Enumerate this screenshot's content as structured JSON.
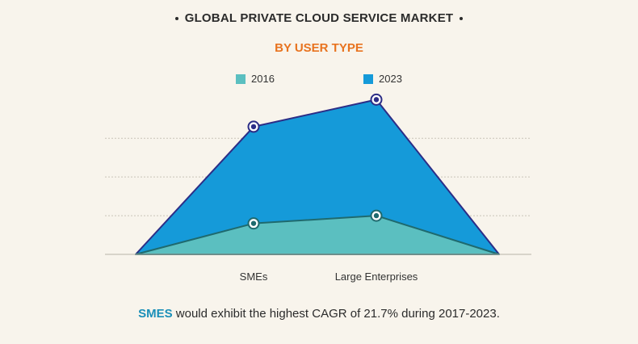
{
  "header": {
    "title": "GLOBAL PRIVATE CLOUD SERVICE MARKET",
    "subtitle": "BY USER TYPE"
  },
  "footer": {
    "highlight": "SMES",
    "text": " would exhibit the highest CAGR of 21.7% during 2017-2023."
  },
  "colors": {
    "series_2016": "#5bbfc0",
    "series_2023": "#159ad9",
    "outline_2023": "#2c2d86",
    "outline_2016": "#1f6a6e",
    "subtitle": "#e8731f",
    "highlight": "#1a8fb8"
  },
  "chart_data": {
    "type": "area",
    "categories": [
      "SMEs",
      "Large Enterprises"
    ],
    "series": [
      {
        "name": "2016",
        "values": [
          0.8,
          1.0
        ]
      },
      {
        "name": "2023",
        "values": [
          3.3,
          4.0
        ]
      }
    ],
    "ylim": [
      0,
      4.3
    ],
    "grid": true,
    "legend": "top-center"
  }
}
